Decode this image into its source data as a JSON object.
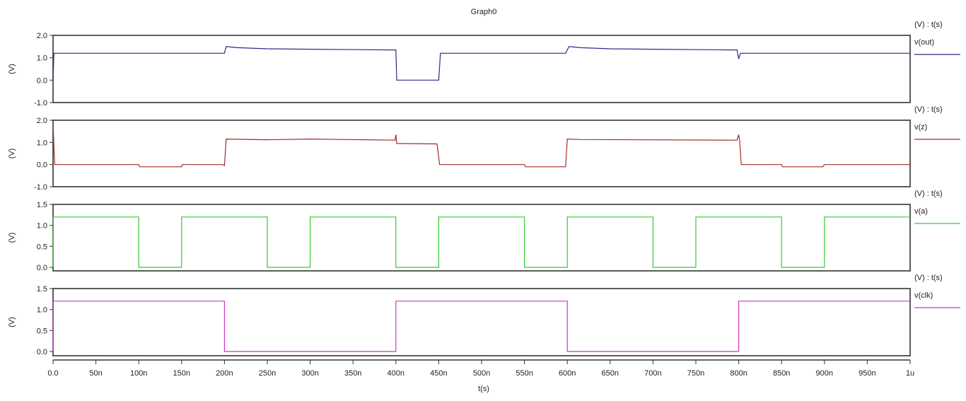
{
  "window": {
    "title": "Graph0"
  },
  "colors": {
    "frame": "#333333",
    "v_out": "#2b2b8a",
    "v_z": "#a52a2a",
    "v_a": "#33cc33",
    "v_clk": "#cc33cc"
  },
  "chart_data": {
    "type": "line",
    "title": "Graph0",
    "xlabel": "t(s)",
    "x_ticks": [
      "0.0",
      "50n",
      "100n",
      "150n",
      "200n",
      "250n",
      "300n",
      "350n",
      "400n",
      "450n",
      "500n",
      "550n",
      "600n",
      "650n",
      "700n",
      "750n",
      "800n",
      "850n",
      "900n",
      "950n",
      "1u"
    ],
    "xlim_ns": [
      0,
      1000
    ],
    "grid": false,
    "legend_position": "right",
    "panels": [
      {
        "name": "v(out)",
        "unit_header": "(V) : t(s)",
        "ylabel": "(V)",
        "ylim": [
          -1.0,
          2.0
        ],
        "y_ticks": [
          "2.0",
          "1.0",
          "0.0",
          "-1.0"
        ],
        "color": "#2b2b8a",
        "points_ns_v": [
          [
            0,
            0
          ],
          [
            1,
            1.2
          ],
          [
            100,
            1.2
          ],
          [
            200,
            1.2
          ],
          [
            202,
            1.5
          ],
          [
            215,
            1.45
          ],
          [
            250,
            1.4
          ],
          [
            300,
            1.38
          ],
          [
            395,
            1.35
          ],
          [
            400,
            1.35
          ],
          [
            401,
            0.0
          ],
          [
            450,
            0.0
          ],
          [
            452,
            1.2
          ],
          [
            500,
            1.2
          ],
          [
            598,
            1.2
          ],
          [
            602,
            1.5
          ],
          [
            615,
            1.45
          ],
          [
            650,
            1.4
          ],
          [
            700,
            1.38
          ],
          [
            790,
            1.35
          ],
          [
            798,
            1.35
          ],
          [
            800,
            0.95
          ],
          [
            802,
            1.2
          ],
          [
            900,
            1.2
          ],
          [
            1000,
            1.2
          ]
        ]
      },
      {
        "name": "v(z)",
        "unit_header": "(V) : t(s)",
        "ylabel": "(V)",
        "ylim": [
          -1.0,
          2.0
        ],
        "y_ticks": [
          "2.0",
          "1.0",
          "0.0",
          "-1.0"
        ],
        "color": "#a52a2a",
        "points_ns_v": [
          [
            0,
            1.9
          ],
          [
            1,
            0.8
          ],
          [
            2,
            0.0
          ],
          [
            100,
            0.0
          ],
          [
            101,
            -0.1
          ],
          [
            150,
            -0.1
          ],
          [
            151,
            0.0
          ],
          [
            198,
            0.0
          ],
          [
            200,
            -0.05
          ],
          [
            202,
            1.15
          ],
          [
            250,
            1.12
          ],
          [
            300,
            1.15
          ],
          [
            399,
            1.1
          ],
          [
            400,
            1.35
          ],
          [
            401,
            0.95
          ],
          [
            448,
            0.93
          ],
          [
            451,
            0.0
          ],
          [
            550,
            0.0
          ],
          [
            551,
            -0.1
          ],
          [
            598,
            -0.1
          ],
          [
            600,
            1.15
          ],
          [
            615,
            1.13
          ],
          [
            798,
            1.1
          ],
          [
            800,
            1.35
          ],
          [
            801,
            1.1
          ],
          [
            803,
            0.0
          ],
          [
            850,
            0.0
          ],
          [
            851,
            -0.1
          ],
          [
            898,
            -0.1
          ],
          [
            900,
            0.0
          ],
          [
            1000,
            0.0
          ]
        ]
      },
      {
        "name": "v(a)",
        "unit_header": "(V) : t(s)",
        "ylabel": "(V)",
        "ylim": [
          0.0,
          1.5
        ],
        "y_ticks": [
          "1.5",
          "1.0",
          "0.5",
          "0.0"
        ],
        "color": "#33cc33",
        "high_v": 1.2,
        "low_v": 0.0,
        "low_intervals_ns": [
          [
            100,
            150
          ],
          [
            250,
            300
          ],
          [
            400,
            450
          ],
          [
            550,
            600
          ],
          [
            700,
            750
          ],
          [
            850,
            900
          ]
        ]
      },
      {
        "name": "v(clk)",
        "unit_header": "(V) : t(s)",
        "ylabel": "(V)",
        "ylim": [
          0.0,
          1.5
        ],
        "y_ticks": [
          "1.5",
          "1.0",
          "0.5",
          "0.0"
        ],
        "color": "#cc33cc",
        "high_v": 1.2,
        "low_v": 0.0,
        "low_intervals_ns": [
          [
            200,
            400
          ],
          [
            600,
            800
          ]
        ]
      }
    ]
  }
}
